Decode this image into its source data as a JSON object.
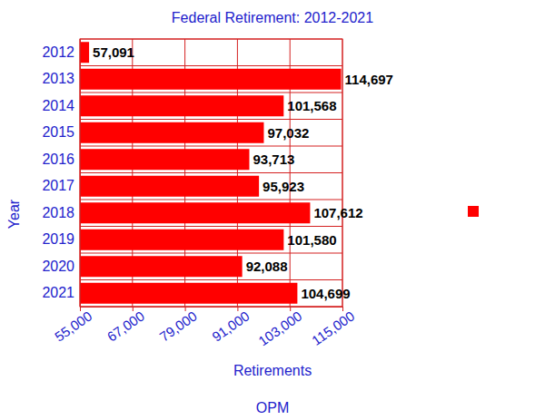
{
  "chart_data": {
    "type": "bar",
    "orientation": "horizontal",
    "title": "Federal Retirement: 2012-2021",
    "y_label": "Year",
    "x_label": "Retirements",
    "caption": "OPM",
    "categories": [
      "2012",
      "2013",
      "2014",
      "2015",
      "2016",
      "2017",
      "2018",
      "2019",
      "2020",
      "2021"
    ],
    "values": [
      57091,
      114697,
      101568,
      97032,
      93713,
      95923,
      107612,
      101580,
      92088,
      104699
    ],
    "value_labels": [
      "57,091",
      "114,697",
      "101,568",
      "97,032",
      "93,713",
      "95,923",
      "107,612",
      "101,580",
      "92,088",
      "104,699"
    ],
    "data_labels": true,
    "color": "#ff0000",
    "xlim": [
      55000,
      115000
    ],
    "xticks": [
      {
        "value": 55000,
        "label": "55,000"
      },
      {
        "value": 67000,
        "label": "67,000"
      },
      {
        "value": 79000,
        "label": "79,000"
      },
      {
        "value": 91000,
        "label": "91,000"
      },
      {
        "value": 103000,
        "label": "103,000"
      },
      {
        "value": 115000,
        "label": "115,000"
      }
    ],
    "grid": true,
    "legend": "right"
  }
}
